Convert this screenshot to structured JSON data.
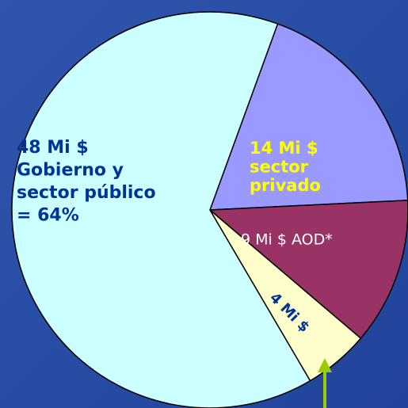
{
  "chart_data": {
    "type": "pie",
    "values": [
      14,
      9,
      4,
      48
    ],
    "colors": [
      "#9999ff",
      "#993366",
      "#ffffcc",
      "#ccffff"
    ],
    "labels": [
      [
        "14 Mi $",
        "sector",
        "privado"
      ],
      [
        "9 Mi $ AOD*"
      ],
      [
        "4 Mi $"
      ],
      [
        "48 Mi $",
        "Gobierno y",
        "sector público",
        "= 64%"
      ]
    ]
  }
}
